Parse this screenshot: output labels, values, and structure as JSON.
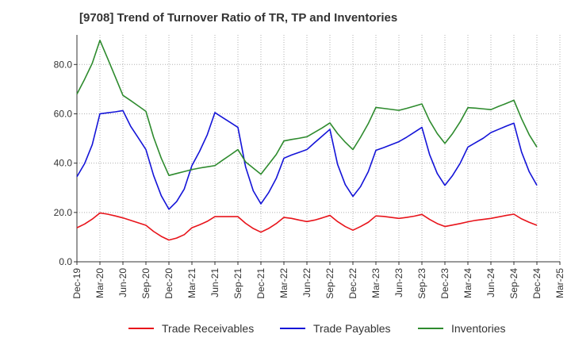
{
  "chart_data": {
    "type": "line",
    "title": "[9708]  Trend of Turnover Ratio of TR, TP and Inventories",
    "xlabel": "",
    "ylabel": "",
    "ylim": [
      0,
      92
    ],
    "yticks": [
      "0.0",
      "20.0",
      "40.0",
      "60.0",
      "80.0"
    ],
    "ytick_values": [
      0,
      20,
      40,
      60,
      80
    ],
    "xtick_labels": [
      "Dec-19",
      "Mar-20",
      "Jun-20",
      "Sep-20",
      "Dec-20",
      "Mar-21",
      "Jun-21",
      "Sep-21",
      "Dec-21",
      "Mar-22",
      "Jun-22",
      "Sep-22",
      "Dec-22",
      "Mar-23",
      "Jun-23",
      "Sep-23",
      "Dec-23",
      "Mar-24",
      "Jun-24",
      "Sep-24",
      "Dec-24",
      "Mar-25"
    ],
    "x": [
      "Dec-19",
      "Jan-20",
      "Feb-20",
      "Mar-20",
      "Apr-20",
      "May-20",
      "Jun-20",
      "Jul-20",
      "Aug-20",
      "Sep-20",
      "Oct-20",
      "Nov-20",
      "Dec-20",
      "Jan-21",
      "Feb-21",
      "Mar-21",
      "Apr-21",
      "May-21",
      "Jun-21",
      "Jul-21",
      "Aug-21",
      "Sep-21",
      "Oct-21",
      "Nov-21",
      "Dec-21",
      "Jan-22",
      "Feb-22",
      "Mar-22",
      "Apr-22",
      "May-22",
      "Jun-22",
      "Jul-22",
      "Aug-22",
      "Sep-22",
      "Oct-22",
      "Nov-22",
      "Dec-22",
      "Jan-23",
      "Feb-23",
      "Mar-23",
      "Apr-23",
      "May-23",
      "Jun-23",
      "Jul-23",
      "Aug-23",
      "Sep-23",
      "Oct-23",
      "Nov-23",
      "Dec-23",
      "Jan-24",
      "Feb-24",
      "Mar-24",
      "Apr-24",
      "May-24",
      "Jun-24",
      "Jul-24",
      "Aug-24",
      "Sep-24",
      "Oct-24",
      "Nov-24",
      "Dec-24"
    ],
    "series": [
      {
        "name": "Trade Receivables",
        "color": "#e8141b",
        "values": [
          13.8,
          15.3,
          17.3,
          19.8,
          19.3,
          18.6,
          17.8,
          16.8,
          15.8,
          14.8,
          12.3,
          10.3,
          8.8,
          9.6,
          11.0,
          13.8,
          15.0,
          16.4,
          18.3,
          18.3,
          18.3,
          18.3,
          15.6,
          13.5,
          12.0,
          13.5,
          15.5,
          18.0,
          17.6,
          16.9,
          16.3,
          16.9,
          17.8,
          18.8,
          16.3,
          14.3,
          12.8,
          14.3,
          16.0,
          18.6,
          18.4,
          18.0,
          17.6,
          18.0,
          18.5,
          19.2,
          17.2,
          15.5,
          14.3,
          14.9,
          15.5,
          16.2,
          16.8,
          17.2,
          17.6,
          18.2,
          18.8,
          19.3,
          17.4,
          16.0,
          14.8
        ]
      },
      {
        "name": "Trade Payables",
        "color": "#1414d8",
        "values": [
          34.5,
          39.8,
          47.5,
          60.0,
          60.4,
          60.8,
          61.3,
          55.0,
          50.3,
          45.5,
          35.0,
          26.8,
          21.3,
          24.4,
          29.5,
          39.0,
          44.8,
          51.5,
          60.5,
          58.5,
          56.5,
          54.5,
          38.5,
          28.8,
          23.5,
          28.0,
          33.8,
          42.0,
          43.3,
          44.4,
          45.5,
          48.3,
          51.0,
          53.7,
          39.5,
          31.3,
          26.5,
          30.5,
          36.5,
          45.2,
          46.3,
          47.5,
          48.7,
          50.5,
          52.5,
          54.5,
          43.5,
          35.8,
          31.0,
          35.0,
          40.0,
          46.5,
          48.3,
          50.1,
          52.4,
          53.7,
          55.0,
          56.2,
          44.5,
          36.5,
          31.0
        ]
      },
      {
        "name": "Inventories",
        "color": "#2e8b2e",
        "values": [
          68.0,
          74.0,
          80.5,
          89.8,
          82.5,
          75.0,
          67.5,
          65.4,
          63.2,
          61.0,
          50.5,
          42.0,
          35.0,
          35.8,
          36.6,
          37.4,
          38.0,
          38.5,
          39.0,
          41.2,
          43.3,
          45.5,
          40.5,
          38.0,
          35.5,
          39.5,
          43.5,
          49.0,
          49.6,
          50.1,
          50.7,
          52.5,
          54.3,
          56.3,
          52.0,
          48.5,
          45.5,
          50.5,
          56.0,
          62.6,
          62.2,
          61.8,
          61.4,
          62.2,
          63.1,
          64.0,
          57.2,
          52.0,
          48.0,
          52.0,
          56.8,
          62.5,
          62.3,
          62.0,
          61.7,
          63.0,
          64.2,
          65.5,
          58.0,
          51.5,
          46.5
        ]
      }
    ],
    "legend_position": "bottom",
    "grid": "y-dotted"
  }
}
